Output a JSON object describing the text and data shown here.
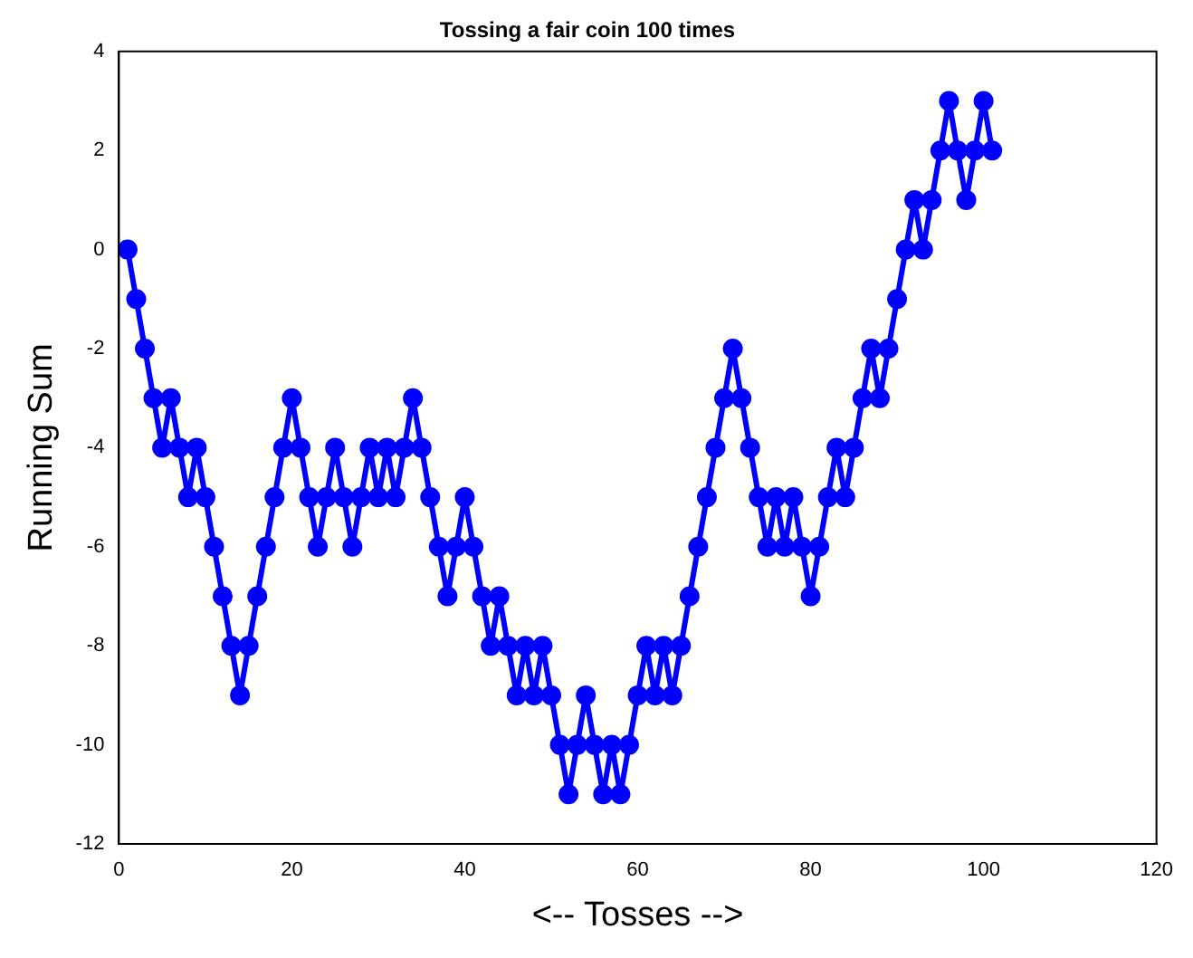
{
  "chart_data": {
    "type": "line",
    "title": "Tossing a fair coin 100 times",
    "xlabel": "<-- Tosses -->",
    "ylabel": "Running Sum",
    "x": [
      1,
      2,
      3,
      4,
      5,
      6,
      7,
      8,
      9,
      10,
      11,
      12,
      13,
      14,
      15,
      16,
      17,
      18,
      19,
      20,
      21,
      22,
      23,
      24,
      25,
      26,
      27,
      28,
      29,
      30,
      31,
      32,
      33,
      34,
      35,
      36,
      37,
      38,
      39,
      40,
      41,
      42,
      43,
      44,
      45,
      46,
      47,
      48,
      49,
      50,
      51,
      52,
      53,
      54,
      55,
      56,
      57,
      58,
      59,
      60,
      61,
      62,
      63,
      64,
      65,
      66,
      67,
      68,
      69,
      70,
      71,
      72,
      73,
      74,
      75,
      76,
      77,
      78,
      79,
      80,
      81,
      82,
      83,
      84,
      85,
      86,
      87,
      88,
      89,
      90,
      91,
      92,
      93,
      94,
      95,
      96,
      97,
      98,
      99,
      100,
      101
    ],
    "series": [
      {
        "color": "#0000ff",
        "values": [
          0,
          -1,
          -2,
          -3,
          -4,
          -3,
          -4,
          -5,
          -4,
          -5,
          -6,
          -7,
          -8,
          -9,
          -8,
          -7,
          -6,
          -5,
          -4,
          -3,
          -4,
          -5,
          -6,
          -5,
          -4,
          -5,
          -6,
          -5,
          -4,
          -5,
          -4,
          -5,
          -4,
          -3,
          -4,
          -5,
          -6,
          -7,
          -6,
          -5,
          -6,
          -7,
          -8,
          -7,
          -8,
          -9,
          -8,
          -9,
          -8,
          -9,
          -10,
          -11,
          -10,
          -9,
          -10,
          -11,
          -10,
          -11,
          -10,
          -9,
          -8,
          -9,
          -8,
          -9,
          -8,
          -7,
          -6,
          -5,
          -4,
          -3,
          -2,
          -3,
          -4,
          -5,
          -6,
          -5,
          -6,
          -5,
          -6,
          -7,
          -6,
          -5,
          -4,
          -5,
          -4,
          -3,
          -2,
          -3,
          -2,
          -1,
          0,
          1,
          0,
          1,
          2,
          3,
          2,
          1,
          2,
          3,
          2
        ]
      }
    ],
    "xlim": [
      0,
      120
    ],
    "xticks": [
      0,
      20,
      40,
      60,
      80,
      100,
      120
    ],
    "ylim": [
      -12,
      4
    ],
    "yticks": [
      -12,
      -10,
      -8,
      -6,
      -4,
      -2,
      0,
      2,
      4
    ],
    "grid": false,
    "legend": false,
    "marker": "circle",
    "line_style": "solid"
  }
}
